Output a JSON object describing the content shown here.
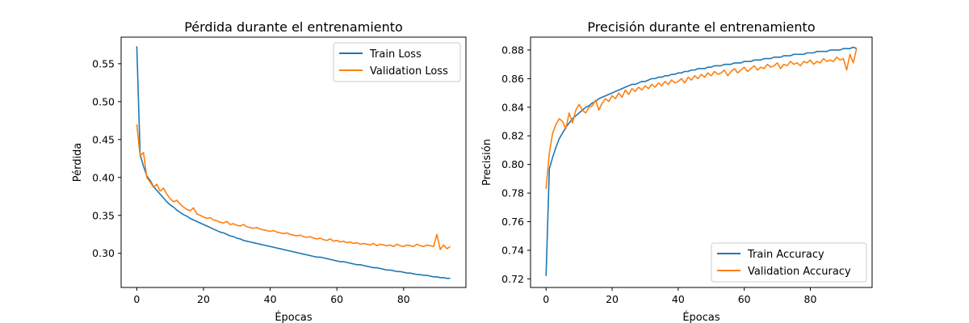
{
  "colors": {
    "train": "#1f77b4",
    "validation": "#ff7f0e"
  },
  "chart_data": [
    {
      "type": "line",
      "title": "Pérdida durante el entrenamiento",
      "xlabel": "Épocas",
      "ylabel": "Pérdida",
      "xlim": [
        -4.7,
        98.7
      ],
      "ylim": [
        0.255,
        0.585
      ],
      "xticks": [
        "0",
        "20",
        "40",
        "60",
        "80"
      ],
      "xtick_values": [
        0,
        20,
        40,
        60,
        80
      ],
      "yticks": [
        "0.30",
        "0.35",
        "0.40",
        "0.45",
        "0.50",
        "0.55"
      ],
      "ytick_values": [
        0.3,
        0.35,
        0.4,
        0.45,
        0.5,
        0.55
      ],
      "legend_position": "upper right",
      "series": [
        {
          "name": "Train Loss",
          "color": "#1f77b4",
          "y": [
            0.573,
            0.43,
            0.415,
            0.402,
            0.396,
            0.388,
            0.383,
            0.378,
            0.373,
            0.368,
            0.364,
            0.361,
            0.357,
            0.354,
            0.351,
            0.349,
            0.346,
            0.344,
            0.342,
            0.34,
            0.338,
            0.336,
            0.334,
            0.332,
            0.33,
            0.328,
            0.327,
            0.325,
            0.323,
            0.322,
            0.32,
            0.319,
            0.317,
            0.316,
            0.315,
            0.314,
            0.313,
            0.312,
            0.311,
            0.31,
            0.309,
            0.308,
            0.307,
            0.306,
            0.305,
            0.304,
            0.303,
            0.302,
            0.301,
            0.3,
            0.299,
            0.298,
            0.297,
            0.296,
            0.295,
            0.295,
            0.294,
            0.293,
            0.292,
            0.291,
            0.29,
            0.289,
            0.289,
            0.288,
            0.287,
            0.286,
            0.285,
            0.285,
            0.284,
            0.283,
            0.282,
            0.281,
            0.281,
            0.28,
            0.279,
            0.278,
            0.278,
            0.277,
            0.276,
            0.276,
            0.275,
            0.274,
            0.274,
            0.273,
            0.272,
            0.272,
            0.271,
            0.271,
            0.27,
            0.269,
            0.269,
            0.268,
            0.268,
            0.267,
            0.267
          ]
        },
        {
          "name": "Validation Loss",
          "color": "#ff7f0e",
          "y": [
            0.47,
            0.428,
            0.433,
            0.4,
            0.394,
            0.387,
            0.391,
            0.382,
            0.386,
            0.378,
            0.372,
            0.368,
            0.37,
            0.365,
            0.361,
            0.358,
            0.356,
            0.36,
            0.352,
            0.35,
            0.348,
            0.346,
            0.347,
            0.344,
            0.343,
            0.341,
            0.34,
            0.342,
            0.338,
            0.339,
            0.337,
            0.336,
            0.338,
            0.335,
            0.334,
            0.333,
            0.334,
            0.332,
            0.331,
            0.33,
            0.329,
            0.33,
            0.328,
            0.327,
            0.326,
            0.327,
            0.325,
            0.324,
            0.323,
            0.324,
            0.322,
            0.321,
            0.322,
            0.32,
            0.319,
            0.32,
            0.318,
            0.317,
            0.319,
            0.316,
            0.317,
            0.315,
            0.316,
            0.314,
            0.315,
            0.313,
            0.314,
            0.312,
            0.313,
            0.312,
            0.311,
            0.313,
            0.31,
            0.312,
            0.311,
            0.31,
            0.311,
            0.309,
            0.312,
            0.31,
            0.309,
            0.311,
            0.31,
            0.309,
            0.312,
            0.31,
            0.309,
            0.311,
            0.31,
            0.309,
            0.325,
            0.305,
            0.311,
            0.306,
            0.309
          ]
        }
      ]
    },
    {
      "type": "line",
      "title": "Precisión durante el entrenamiento",
      "xlabel": "Épocas",
      "ylabel": "Precisión",
      "xlim": [
        -4.7,
        98.7
      ],
      "ylim": [
        0.714,
        0.889
      ],
      "xticks": [
        "0",
        "20",
        "40",
        "60",
        "80"
      ],
      "xtick_values": [
        0,
        20,
        40,
        60,
        80
      ],
      "yticks": [
        "0.72",
        "0.74",
        "0.76",
        "0.78",
        "0.80",
        "0.82",
        "0.84",
        "0.86",
        "0.88"
      ],
      "ytick_values": [
        0.72,
        0.74,
        0.76,
        0.78,
        0.8,
        0.82,
        0.84,
        0.86,
        0.88
      ],
      "legend_position": "lower right",
      "series": [
        {
          "name": "Train Accuracy",
          "color": "#1f77b4",
          "y": [
            0.722,
            0.797,
            0.805,
            0.812,
            0.818,
            0.822,
            0.826,
            0.829,
            0.832,
            0.834,
            0.836,
            0.838,
            0.84,
            0.841,
            0.843,
            0.844,
            0.846,
            0.847,
            0.848,
            0.849,
            0.85,
            0.851,
            0.852,
            0.853,
            0.854,
            0.855,
            0.856,
            0.856,
            0.857,
            0.858,
            0.858,
            0.859,
            0.86,
            0.86,
            0.861,
            0.861,
            0.862,
            0.862,
            0.863,
            0.863,
            0.864,
            0.864,
            0.865,
            0.865,
            0.866,
            0.866,
            0.867,
            0.867,
            0.867,
            0.868,
            0.868,
            0.869,
            0.869,
            0.869,
            0.87,
            0.87,
            0.87,
            0.871,
            0.871,
            0.871,
            0.872,
            0.872,
            0.872,
            0.873,
            0.873,
            0.873,
            0.874,
            0.874,
            0.874,
            0.875,
            0.875,
            0.875,
            0.876,
            0.876,
            0.876,
            0.877,
            0.877,
            0.877,
            0.877,
            0.878,
            0.878,
            0.878,
            0.879,
            0.879,
            0.879,
            0.879,
            0.88,
            0.88,
            0.88,
            0.88,
            0.881,
            0.881,
            0.881,
            0.882,
            0.881
          ]
        },
        {
          "name": "Validation Accuracy",
          "color": "#ff7f0e",
          "y": [
            0.783,
            0.808,
            0.822,
            0.828,
            0.832,
            0.83,
            0.825,
            0.836,
            0.829,
            0.838,
            0.842,
            0.838,
            0.836,
            0.84,
            0.841,
            0.845,
            0.838,
            0.843,
            0.846,
            0.844,
            0.848,
            0.846,
            0.85,
            0.847,
            0.852,
            0.849,
            0.853,
            0.851,
            0.854,
            0.852,
            0.855,
            0.853,
            0.856,
            0.854,
            0.857,
            0.855,
            0.858,
            0.856,
            0.859,
            0.857,
            0.858,
            0.86,
            0.857,
            0.861,
            0.859,
            0.862,
            0.86,
            0.863,
            0.861,
            0.864,
            0.862,
            0.865,
            0.863,
            0.864,
            0.866,
            0.862,
            0.865,
            0.867,
            0.864,
            0.866,
            0.868,
            0.865,
            0.867,
            0.869,
            0.866,
            0.868,
            0.867,
            0.87,
            0.868,
            0.869,
            0.871,
            0.867,
            0.87,
            0.869,
            0.872,
            0.87,
            0.871,
            0.869,
            0.872,
            0.871,
            0.873,
            0.87,
            0.872,
            0.871,
            0.874,
            0.872,
            0.873,
            0.872,
            0.875,
            0.873,
            0.874,
            0.866,
            0.877,
            0.871,
            0.881
          ]
        }
      ]
    }
  ]
}
